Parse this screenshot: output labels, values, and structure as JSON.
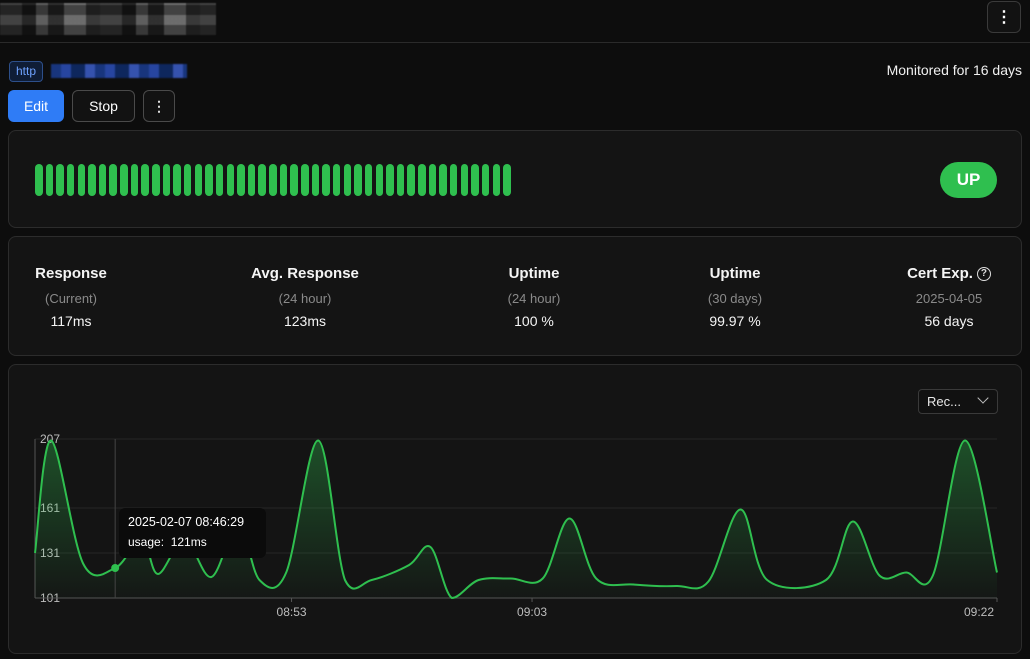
{
  "header": {
    "menu_icon": "vertical-dots-icon"
  },
  "monitor": {
    "type_badge": "http",
    "monitored_text": "Monitored for 16 days"
  },
  "actions": {
    "edit_label": "Edit",
    "stop_label": "Stop",
    "more_icon": "vertical-dots-icon"
  },
  "heartbeat": {
    "beat_count": 45,
    "beat_color": "#2fbf4f",
    "status": "UP",
    "status_color": "#2fbf4f"
  },
  "stats": [
    {
      "label": "Response",
      "sub": "(Current)",
      "value": "117ms"
    },
    {
      "label": "Avg. Response",
      "sub": "(24 hour)",
      "value": "123ms"
    },
    {
      "label": "Uptime",
      "sub": "(24 hour)",
      "value": "100 %"
    },
    {
      "label": "Uptime",
      "sub": "(30 days)",
      "value": "99.97 %"
    },
    {
      "label": "Cert Exp.",
      "sub": "2025-04-05",
      "value": "56 days",
      "icon": "help-circle-icon"
    }
  ],
  "chart_controls": {
    "range_label": "Rec..."
  },
  "tooltip": {
    "time": "2025-02-07 08:46:29",
    "series_label": "usage:",
    "value": "121ms"
  },
  "chart_data": {
    "type": "area",
    "series": [
      {
        "values": [
          [
            0,
            131
          ],
          [
            1.5,
            206
          ],
          [
            4.5,
            124
          ],
          [
            7.5,
            121
          ],
          [
            10,
            140
          ],
          [
            11.5,
            117
          ],
          [
            14,
            140
          ],
          [
            16.5,
            115
          ],
          [
            19,
            150
          ],
          [
            21,
            113
          ],
          [
            23.5,
            118
          ],
          [
            26.5,
            206
          ],
          [
            29,
            113
          ],
          [
            31.5,
            113
          ],
          [
            35,
            123
          ],
          [
            37,
            135
          ],
          [
            39,
            101
          ],
          [
            41.5,
            113
          ],
          [
            44.5,
            114
          ],
          [
            47.5,
            114
          ],
          [
            50,
            154
          ],
          [
            52.5,
            114
          ],
          [
            56,
            110
          ],
          [
            60,
            109
          ],
          [
            63,
            112
          ],
          [
            66,
            160
          ],
          [
            68.5,
            113
          ],
          [
            74,
            113
          ],
          [
            76.5,
            152
          ],
          [
            79,
            116
          ],
          [
            81.5,
            118
          ],
          [
            84,
            116
          ],
          [
            87,
            206
          ],
          [
            90,
            118
          ]
        ]
      }
    ],
    "xticks": [
      "08:53",
      "09:03",
      "09:22"
    ],
    "yticks": [
      101,
      131,
      161,
      207
    ],
    "ylim": [
      101,
      207
    ],
    "line_color": "#2fbf4f",
    "highlight_point": {
      "time": "2025-02-07 08:46:29",
      "value": 121
    }
  }
}
